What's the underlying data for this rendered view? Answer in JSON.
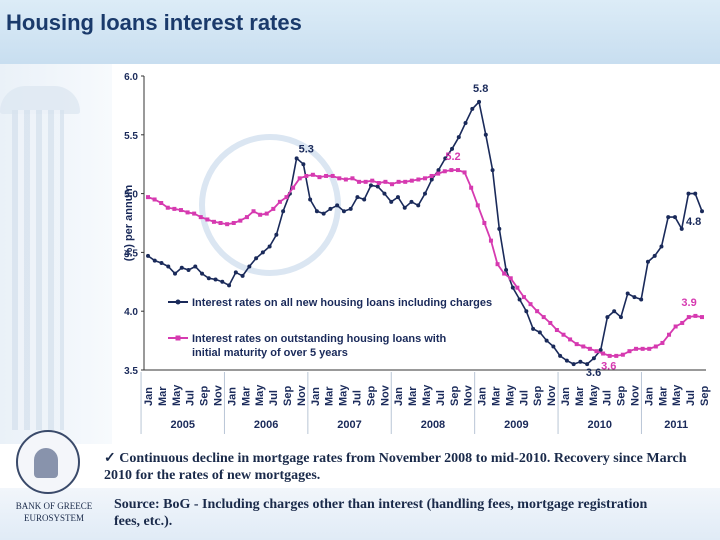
{
  "header": {
    "title": "Housing loans interest rates"
  },
  "chart_data": {
    "type": "line",
    "ylabel": "(%) per annum",
    "ylim": [
      3.5,
      6.0
    ],
    "y_ticks": [
      "6.0",
      "5.5",
      "5.0",
      "4.5",
      "4.0",
      "3.5"
    ],
    "months": [
      "Jan",
      "Mar",
      "May",
      "Jul",
      "Sep",
      "Nov",
      "Jan",
      "Mar",
      "May",
      "Jul",
      "Sep",
      "Nov",
      "Jan",
      "Mar",
      "May",
      "Jul",
      "Sep",
      "Nov",
      "Jan",
      "Mar",
      "May",
      "Jul",
      "Sep",
      "Nov",
      "Jan",
      "Mar",
      "May",
      "Jul",
      "Sep",
      "Nov",
      "Jan",
      "Mar",
      "May",
      "Jul",
      "Sep",
      "Nov",
      "Jan",
      "Mar",
      "May",
      "Jul",
      "Sep"
    ],
    "years": [
      "2005",
      "2006",
      "2007",
      "2008",
      "2009",
      "2010",
      "2011"
    ],
    "series": [
      {
        "name": "Interest rates on all new housing loans including charges",
        "color": "#1a2a5a",
        "values": [
          4.47,
          4.43,
          4.41,
          4.38,
          4.32,
          4.37,
          4.35,
          4.38,
          4.32,
          4.28,
          4.27,
          4.25,
          4.22,
          4.33,
          4.3,
          4.38,
          4.45,
          4.5,
          4.55,
          4.65,
          4.85,
          5.0,
          5.3,
          5.25,
          4.95,
          4.85,
          4.83,
          4.87,
          4.9,
          4.85,
          4.87,
          4.97,
          4.95,
          5.07,
          5.06,
          5.0,
          4.93,
          4.97,
          4.88,
          4.93,
          4.9,
          5.0,
          5.12,
          5.2,
          5.3,
          5.38,
          5.48,
          5.6,
          5.72,
          5.78,
          5.5,
          5.2,
          4.7,
          4.35,
          4.2,
          4.1,
          4.0,
          3.85,
          3.82,
          3.75,
          3.7,
          3.62,
          3.58,
          3.55,
          3.57,
          3.55,
          3.6,
          3.67,
          3.95,
          4.0,
          3.95,
          4.15,
          4.12,
          4.1,
          4.42,
          4.47,
          4.55,
          4.8,
          4.8,
          4.7,
          5.0,
          5.0,
          4.85
        ],
        "labels": [
          {
            "value": "5.3"
          },
          {
            "value": "5.8"
          },
          {
            "value": "3.6"
          },
          {
            "value": "4.8"
          }
        ]
      },
      {
        "name": "Interest rates on outstanding housing loans with initial maturity of over 5 years",
        "color": "#d63ab0",
        "values": [
          4.97,
          4.95,
          4.92,
          4.88,
          4.87,
          4.86,
          4.84,
          4.83,
          4.8,
          4.78,
          4.76,
          4.75,
          4.74,
          4.75,
          4.77,
          4.8,
          4.85,
          4.82,
          4.83,
          4.87,
          4.93,
          4.97,
          5.05,
          5.13,
          5.15,
          5.16,
          5.14,
          5.15,
          5.15,
          5.13,
          5.12,
          5.13,
          5.1,
          5.1,
          5.11,
          5.09,
          5.1,
          5.08,
          5.1,
          5.1,
          5.11,
          5.12,
          5.13,
          5.15,
          5.17,
          5.19,
          5.2,
          5.2,
          5.18,
          5.05,
          4.9,
          4.75,
          4.6,
          4.4,
          4.32,
          4.28,
          4.2,
          4.12,
          4.06,
          4.0,
          3.95,
          3.9,
          3.84,
          3.8,
          3.76,
          3.72,
          3.7,
          3.68,
          3.66,
          3.64,
          3.62,
          3.62,
          3.63,
          3.66,
          3.68,
          3.68,
          3.68,
          3.7,
          3.73,
          3.8,
          3.87,
          3.9,
          3.95,
          3.96,
          3.95
        ],
        "labels": [
          {
            "value": "5.2"
          },
          {
            "value": "3.6"
          },
          {
            "value": "3.9"
          }
        ]
      }
    ],
    "legend_placement": "bottom-left"
  },
  "footer": {
    "bullet": "✓ Continuous decline in mortgage rates from November 2008 to mid-2010.  Recovery since March 2010 for the rates of new mortgages.",
    "source": "Source: BoG - Including charges other than interest (handling fees, mortgage registration fees, etc.).",
    "bank_name_line1": "BANK OF GREECE",
    "bank_name_line2": "EUROSYSTEM"
  },
  "colors": {
    "title": "#1a3a6b",
    "header_bg": "#c8def0",
    "new_loans": "#1a2a5a",
    "outstanding": "#d63ab0"
  }
}
